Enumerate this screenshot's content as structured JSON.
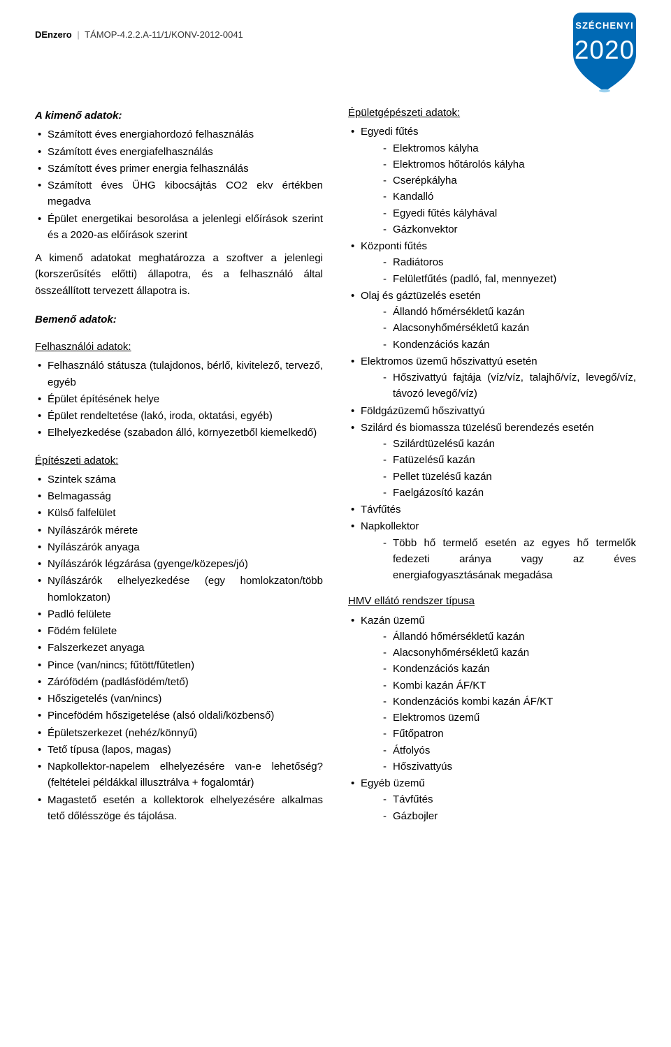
{
  "header": {
    "brand": "DEnzero",
    "code": "TÁMOP-4.2.2.A-11/1/KONV-2012-0041"
  },
  "logo": {
    "top_text": "SZÉCHENYI",
    "year": "2020",
    "bg_color": "#0069b4",
    "text_color": "#ffffff",
    "outline_color": "#9bd1ef"
  },
  "left": {
    "out_title": "A kimenő adatok:",
    "out_items": [
      "Számított éves energiahordozó felhasználás",
      "Számított éves energiafelhasználás",
      "Számított éves primer energia felhasználás",
      "Számított éves ÜHG kibocsájtás CO2 ekv értékben megadva",
      "Épület energetikai besorolása a jelenlegi előírások szerint és a 2020-as előírások szerint"
    ],
    "out_paragraph": "A kimenő adatokat meghatározza a szoftver a jelenlegi (korszerűsítés előtti) állapotra, és a felhasználó által összeállított tervezett állapotra is.",
    "in_title": "Bemenő adatok:",
    "user_heading": " Felhasználói adatok:",
    "user_items": [
      "Felhasználó státusza (tulajdonos, bérlő, kivitelező, tervező, egyéb",
      "Épület építésének helye",
      "Épület rendeltetése (lakó, iroda, oktatási, egyéb)",
      "Elhelyezkedése (szabadon álló, környezetből kiemelkedő)"
    ],
    "arch_heading": "Építészeti adatok:",
    "arch_items": [
      "Szintek száma",
      "Belmagasság",
      "Külső falfelület",
      "Nyílászárók mérete",
      "Nyílászárók anyaga",
      "Nyílászárók légzárása (gyenge/közepes/jó)",
      "Nyílászárók elhelyezkedése (egy homlokzaton/több homlokzaton)",
      "Padló felülete",
      "Födém felülete",
      "Falszerkezet anyaga",
      "Pince (van/nincs; fűtött/fűtetlen)",
      "Zárófödém (padlásfödém/tető)",
      "Hőszigetelés (van/nincs)",
      "Pincefödém hőszigetelése (alsó oldali/közbenső)",
      "Épületszerkezet (nehéz/könnyű)",
      "Tető típusa (lapos, magas)",
      "Napkollektor-napelem elhelyezésére van-e lehetőség? (feltételei példákkal illusztrálva + fogalomtár)",
      "Magastető esetén a kollektorok elhelyezésére alkalmas tető dőlésszöge és tájolása."
    ]
  },
  "right": {
    "mech_heading": "Épületgépészeti adatok:",
    "mech": [
      {
        "label": "Egyedi fűtés",
        "sub": [
          "Elektromos kályha",
          "Elektromos hőtárolós kályha",
          "Cserépkályha",
          "Kandalló",
          "Egyedi fűtés kályhával",
          "Gázkonvektor"
        ]
      },
      {
        "label": "Központi fűtés",
        "sub": [
          "Radiátoros",
          "Felületfűtés (padló, fal, mennyezet)"
        ]
      },
      {
        "label": "Olaj és gáztüzelés esetén",
        "sub": [
          "Állandó hőmérsékletű kazán",
          "Alacsonyhőmérsékletű kazán",
          "Kondenzációs kazán"
        ]
      },
      {
        "label": "Elektromos üzemű hőszivattyú esetén",
        "sub": [
          "Hőszivattyú fajtája (víz/víz, talajhő/víz, levegő/víz, távozó levegő/víz)"
        ]
      },
      {
        "label": "Földgázüzemű hőszivattyú",
        "sub": []
      },
      {
        "label": "Szilárd és biomassza tüzelésű berendezés esetén",
        "sub": [
          "Szilárdtüzelésű kazán",
          "Fatüzelésű kazán",
          "Pellet tüzelésű kazán",
          "Faelgázosító kazán"
        ]
      },
      {
        "label": "Távfűtés",
        "sub": []
      },
      {
        "label": "Napkollektor",
        "sub": [
          "Több hő termelő esetén az egyes hő termelők fedezeti aránya vagy az éves energiafogyasztásának megadása"
        ]
      }
    ],
    "hmv_heading": "HMV ellátó rendszer típusa",
    "hmv": [
      {
        "label": "Kazán üzemű",
        "sub": [
          "Állandó hőmérsékletű kazán",
          "Alacsonyhőmérsékletű kazán",
          "Kondenzációs kazán",
          "Kombi kazán ÁF/KT",
          "Kondenzációs kombi kazán ÁF/KT",
          "Elektromos üzemű",
          "Fűtőpatron",
          "Átfolyós",
          "Hőszivattyús"
        ]
      },
      {
        "label": "Egyéb üzemű",
        "sub": [
          "Távfűtés",
          "Gázbojler"
        ]
      }
    ]
  }
}
